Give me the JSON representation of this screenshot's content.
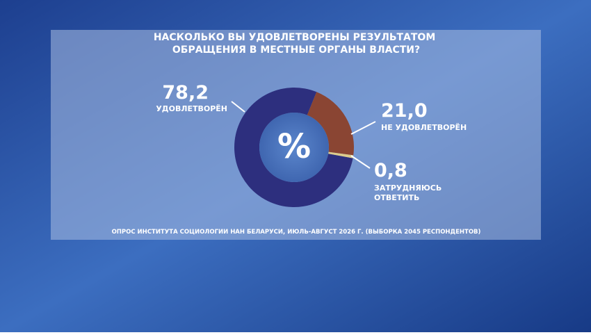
{
  "chart_data": {
    "type": "donut",
    "title": "НАСКОЛЬКО ВЫ УДОВЛЕТВОРЕНЫ РЕЗУЛЬТАТОМ ОБРАЩЕНИЯ В МЕСТНЫЕ ОРГАНЫ ВЛАСТИ?",
    "center_label": "%",
    "categories": [
      "УДОВЛЕТВОРЁН",
      "НЕ УДОВЛЕТВОРЁН",
      "ЗАТРУДНЯЮСЬ ОТВЕТИТЬ"
    ],
    "values": [
      78.2,
      21.0,
      0.8
    ],
    "value_labels": [
      "78,2",
      "21,0",
      "0,8"
    ],
    "colors": [
      "#2d2f7e",
      "#8a4533",
      "#dccb8c"
    ],
    "source": "ОПРОС ИНСТИТУТА СОЦИОЛОГИИ НАН БЕЛАРУСИ, ИЮЛЬ-АВГУСТ 2026 Г. (ВЫБОРКА 2045 РЕСПОНДЕНТОВ)"
  }
}
